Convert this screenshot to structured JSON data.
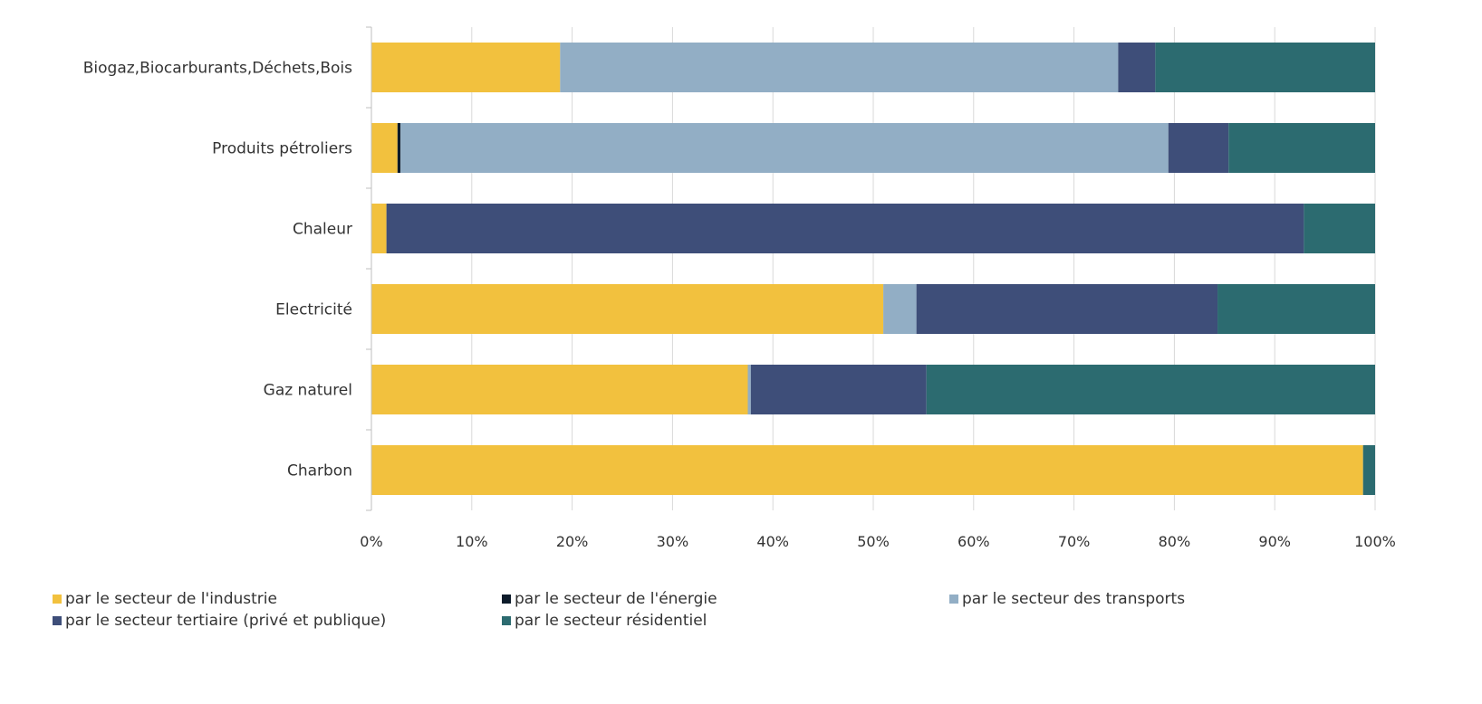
{
  "chart_data": {
    "type": "bar",
    "orientation": "horizontal",
    "stacked": "percent",
    "title": "",
    "xlabel": "",
    "ylabel": "",
    "xlim": [
      0,
      100
    ],
    "x_ticks": [
      "0%",
      "10%",
      "20%",
      "30%",
      "40%",
      "50%",
      "60%",
      "70%",
      "80%",
      "90%",
      "100%"
    ],
    "grid": "vertical",
    "legend_position": "bottom",
    "categories": [
      "Biogaz,Biocarburants,Déchets,Bois",
      "Produits pétroliers",
      "Chaleur",
      "Electricité",
      "Gaz naturel",
      "Charbon"
    ],
    "series": [
      {
        "name": "par le secteur de l'industrie",
        "color": "#F2C13E",
        "values": [
          18.8,
          2.6,
          1.5,
          51.0,
          37.5,
          98.8
        ]
      },
      {
        "name": "par le secteur de l'énergie",
        "color": "#0D1B2A",
        "values": [
          0.0,
          0.3,
          0.0,
          0.0,
          0.0,
          0.0
        ]
      },
      {
        "name": "par le secteur des transports",
        "color": "#92AEC5",
        "values": [
          55.6,
          76.5,
          0.0,
          3.3,
          0.3,
          0.0
        ]
      },
      {
        "name": "par le secteur tertiaire (privé et publique)",
        "color": "#3E4E79",
        "values": [
          3.7,
          6.0,
          91.4,
          30.0,
          17.5,
          0.0
        ]
      },
      {
        "name": "par le secteur résidentiel",
        "color": "#2C6B70",
        "values": [
          21.9,
          14.6,
          7.1,
          15.7,
          44.7,
          1.2
        ]
      }
    ]
  }
}
